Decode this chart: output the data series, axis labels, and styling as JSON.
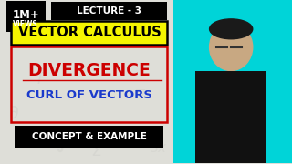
{
  "bg_color": "#deded8",
  "cyan_bg": "#00d4d8",
  "lecture_label": "LECTURE - 3",
  "series_label": "VECTOR CALCULUS",
  "main_title1": "DIVERGENCE",
  "main_title2": "CURL OF VECTORS",
  "sub_label": "CONCEPT & EXAMPLE",
  "badge_text1": "1M+",
  "badge_text2": "VIEWS",
  "series_box_color": "#f5f500",
  "series_box_border": "#000000",
  "lecture_box_color": "#000000",
  "lecture_text_color": "#ffffff",
  "divergence_color": "#cc0000",
  "curl_color": "#1a3acc",
  "sub_box_color": "#000000",
  "sub_text_color": "#ffffff",
  "badge_bg": "#000000",
  "badge_text_color": "#ffffff",
  "red_border_color": "#cc0000"
}
